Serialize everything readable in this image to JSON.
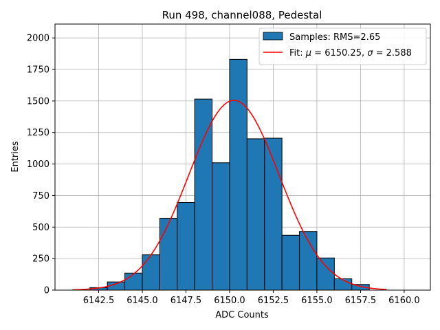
{
  "chart_data": {
    "type": "bar",
    "title": "Run 498, channel088, Pedestal",
    "xlabel": "ADC Counts",
    "ylabel": "Entries",
    "xlim": [
      6140.0,
      6161.5
    ],
    "ylim": [
      0,
      2110
    ],
    "xticks": [
      6142.5,
      6145.0,
      6147.5,
      6150.0,
      6152.5,
      6155.0,
      6157.5,
      6160.0
    ],
    "yticks": [
      0,
      250,
      500,
      750,
      1000,
      1250,
      1500,
      1750,
      2000
    ],
    "grid": true,
    "legend_position": "top-right",
    "bar_color": "#1f77b4",
    "fit_color": "#ff0000",
    "series": [
      {
        "name": "Samples: RMS=2.65",
        "bins": [
          {
            "x0": 6142,
            "x1": 6143,
            "value": 20
          },
          {
            "x0": 6143,
            "x1": 6144,
            "value": 65
          },
          {
            "x0": 6144,
            "x1": 6145,
            "value": 135
          },
          {
            "x0": 6145,
            "x1": 6146,
            "value": 280
          },
          {
            "x0": 6146,
            "x1": 6147,
            "value": 570
          },
          {
            "x0": 6147,
            "x1": 6148,
            "value": 695
          },
          {
            "x0": 6148,
            "x1": 6149,
            "value": 1515
          },
          {
            "x0": 6149,
            "x1": 6150,
            "value": 1010
          },
          {
            "x0": 6150,
            "x1": 6151,
            "value": 1830
          },
          {
            "x0": 6151,
            "x1": 6152,
            "value": 1200
          },
          {
            "x0": 6152,
            "x1": 6153,
            "value": 1205
          },
          {
            "x0": 6153,
            "x1": 6154,
            "value": 435
          },
          {
            "x0": 6154,
            "x1": 6155,
            "value": 465
          },
          {
            "x0": 6155,
            "x1": 6156,
            "value": 255
          },
          {
            "x0": 6156,
            "x1": 6157,
            "value": 90
          },
          {
            "x0": 6157,
            "x1": 6158,
            "value": 45
          }
        ]
      },
      {
        "name": "Fit: μ = 6150.25, σ = 2.588",
        "type": "line",
        "gaussian": {
          "mu": 6150.25,
          "sigma": 2.588,
          "amplitude": 1505
        },
        "x_range": [
          6141.0,
          6159.0
        ]
      }
    ],
    "legend": {
      "samples_label": "Samples: RMS=2.65",
      "fit_prefix": "Fit: ",
      "fit_mu_symbol": "μ",
      "fit_mu_value": " = 6150.25, ",
      "fit_sigma_symbol": "σ",
      "fit_sigma_value": " = 2.588"
    }
  }
}
